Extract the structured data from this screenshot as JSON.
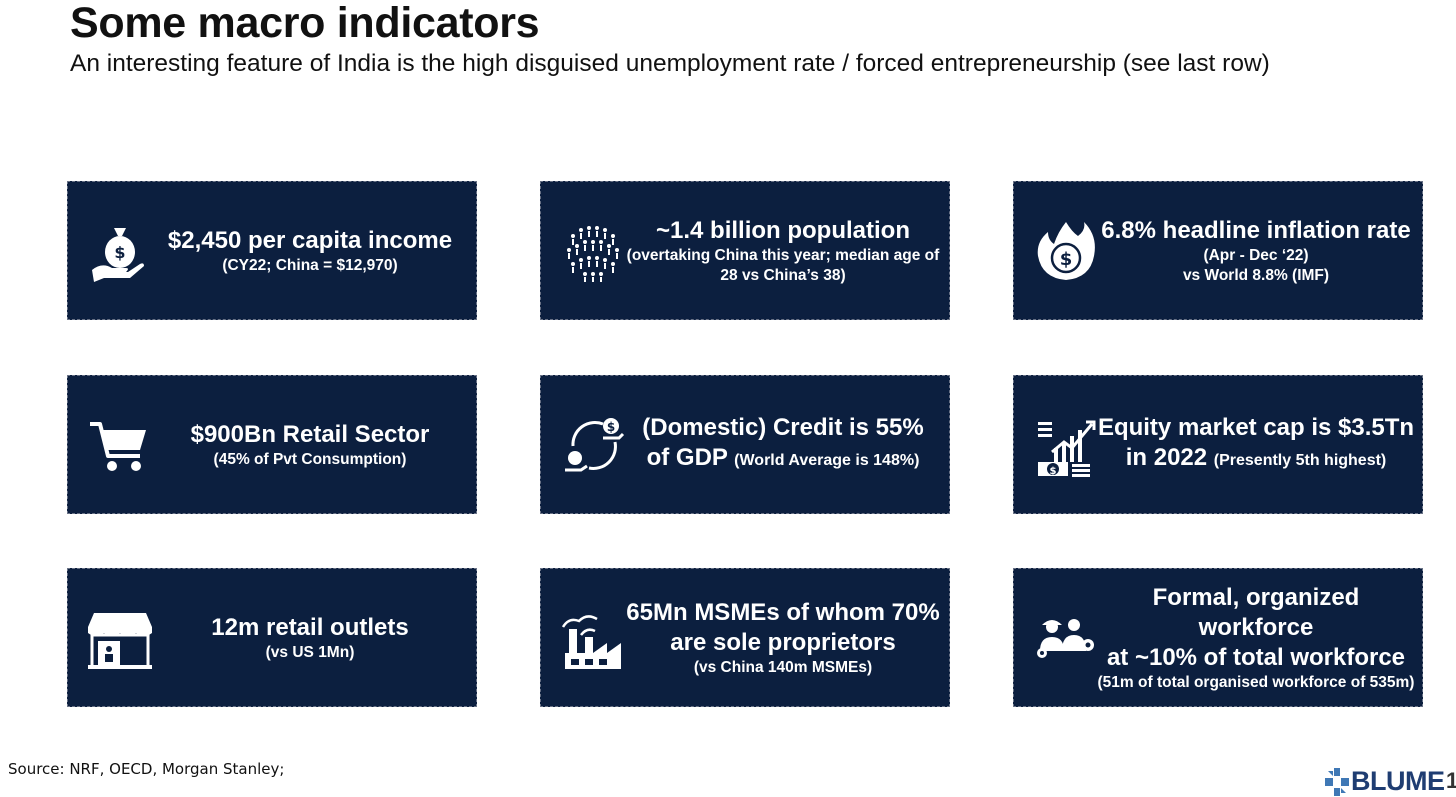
{
  "header": {
    "title": "Some macro indicators",
    "subtitle": "An interesting feature of India is the high disguised unemployment rate / forced entrepreneurship (see last row)"
  },
  "cards": [
    {
      "icon": "money-bag-hand-icon",
      "main": "$2,450 per capita income",
      "sub": "(CY22; China = $12,970)"
    },
    {
      "icon": "population-crowd-icon",
      "main": "~1.4 billion population",
      "sub": "(overtaking China this year; median age of 28 vs China’s 38)"
    },
    {
      "icon": "fire-dollar-icon",
      "main": "6.8% headline inflation rate",
      "sub1": "(Apr - Dec ‘22)",
      "sub2": "vs World 8.8% (IMF)"
    },
    {
      "icon": "shopping-cart-icon",
      "main": "$900Bn Retail Sector",
      "sub": "(45% of Pvt Consumption)"
    },
    {
      "icon": "credit-cycle-icon",
      "main1": "(Domestic) Credit is 55%",
      "main2": "of GDP",
      "inline": "(World Average is 148%)"
    },
    {
      "icon": "market-growth-icon",
      "main1": "Equity market cap is $3.5Tn",
      "main2": "in 2022",
      "inline": "(Presently 5th highest)"
    },
    {
      "icon": "storefront-icon",
      "main": "12m retail outlets",
      "sub": "(vs US 1Mn)"
    },
    {
      "icon": "factory-icon",
      "main1": "65Mn MSMEs of whom 70%",
      "main2": "are sole proprietors",
      "sub": "(vs China 140m MSMEs)"
    },
    {
      "icon": "workforce-icon",
      "main1": "Formal, organized workforce",
      "main2": "at ~10% of total workforce",
      "sub": "(51m of total organised workforce of 535m)"
    }
  ],
  "footer": {
    "source": "Source: NRF, OECD, Morgan Stanley;",
    "logo": "BLUME",
    "page_number": "1"
  },
  "colors": {
    "card_bg": "#0c1f3f",
    "brand": "#1f3d72"
  }
}
